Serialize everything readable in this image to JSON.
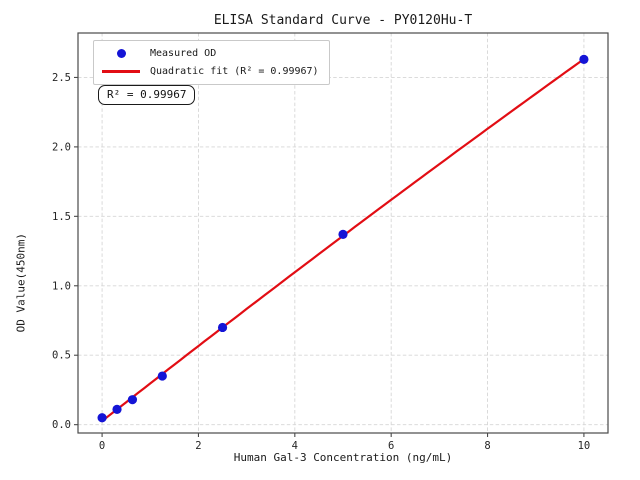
{
  "chart_data": {
    "type": "scatter",
    "title": "ELISA Standard Curve - PY0120Hu-T",
    "xlabel": "Human Gal-3 Concentration (ng/mL)",
    "ylabel": "OD Value(450nm)",
    "series": [
      {
        "name": "Measured OD",
        "kind": "scatter",
        "color": "#1414d6",
        "x": [
          0,
          0.31,
          0.63,
          1.25,
          2.5,
          5,
          10
        ],
        "y": [
          0.05,
          0.11,
          0.18,
          0.35,
          0.7,
          1.37,
          2.63
        ]
      },
      {
        "name": "Quadratic fit (R² = 0.99967)",
        "kind": "line",
        "fit": "quadratic",
        "color": "#e20d14",
        "x_range": [
          0,
          10
        ]
      }
    ],
    "r_squared": 0.99967,
    "annotation": {
      "text": "R² = 0.99967"
    },
    "xlim": [
      -0.5,
      10.5
    ],
    "ylim": [
      -0.06,
      2.82
    ],
    "xticks": [
      0,
      2,
      4,
      6,
      8,
      10
    ],
    "xtick_labels": [
      "0",
      "2",
      "4",
      "6",
      "8",
      "10"
    ],
    "yticks": [
      0,
      0.5,
      1.0,
      1.5,
      2.0,
      2.5
    ],
    "ytick_labels": [
      "0.0",
      "0.5",
      "1.0",
      "1.5",
      "2.0",
      "2.5"
    ],
    "grid": true,
    "legend_position": "upper left",
    "colors": {
      "grid": "#d6d6d6",
      "spine": "#4a4a4a",
      "tick": "#4a4a4a",
      "background": "#ffffff"
    }
  }
}
